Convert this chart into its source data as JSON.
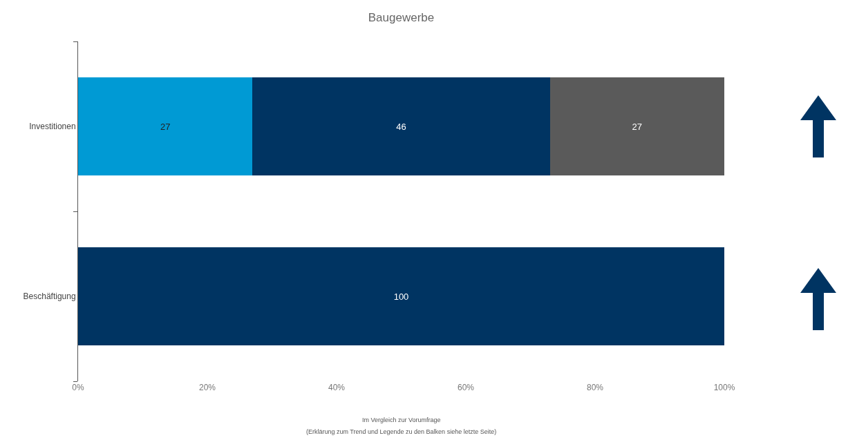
{
  "chart_data": {
    "type": "bar",
    "orientation": "horizontal",
    "stacked": true,
    "title": "Baugewerbe",
    "categories": [
      "Investitionen",
      "Beschäftigung"
    ],
    "series": [
      {
        "color": "#009ad4",
        "values": [
          27,
          null
        ]
      },
      {
        "color": "#003462",
        "values": [
          46,
          100
        ]
      },
      {
        "color": "#5a5a5a",
        "values": [
          27,
          null
        ]
      }
    ],
    "xlim": [
      0,
      100
    ],
    "xticks": [
      {
        "value": 0,
        "label": "0%"
      },
      {
        "value": 20,
        "label": "20%"
      },
      {
        "value": 40,
        "label": "40%"
      },
      {
        "value": 60,
        "label": "60%"
      },
      {
        "value": 80,
        "label": "80%"
      },
      {
        "value": 100,
        "label": "100%"
      }
    ],
    "data_labels": true,
    "grid": false,
    "annotations": [
      "Im Vergleich zur Vorumfrage",
      "(Erklärung zum Trend und Legende zu den Balken siehe letzte Seite)"
    ]
  }
}
